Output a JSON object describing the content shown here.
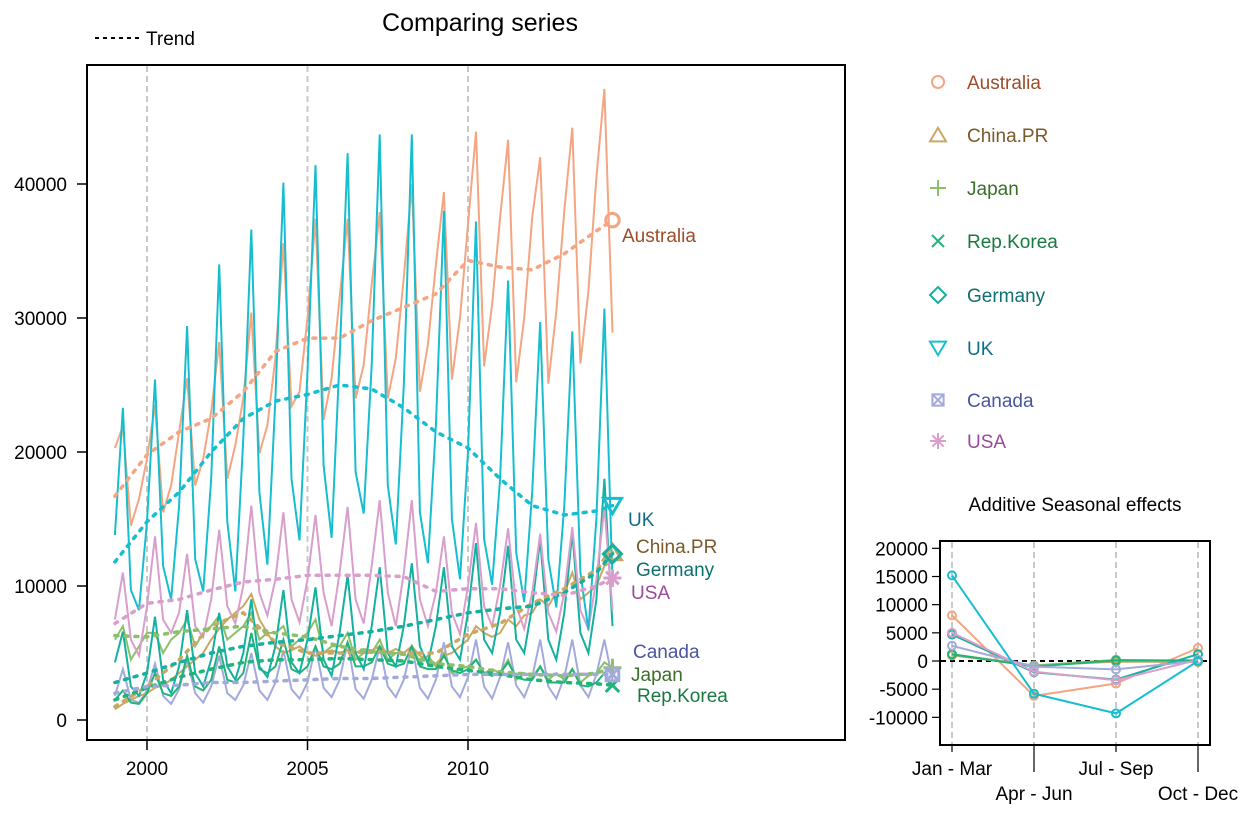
{
  "chart_data": [
    {
      "type": "line",
      "title": "Comparing series",
      "trend_legend_label": "Trend",
      "x_start": 1999,
      "frequency": 4,
      "xticks": [
        2000,
        2005,
        2010
      ],
      "yticks": [
        0,
        10000,
        20000,
        30000,
        40000
      ],
      "ylim": [
        -1500,
        48500
      ],
      "xlim": [
        1997.1,
        2020.7
      ],
      "grid": "vertical dashed at x ticks",
      "legend": "right",
      "trend_x": [
        1999,
        2000,
        2001,
        2002,
        2003,
        2004,
        2005,
        2006,
        2007,
        2008,
        2009,
        2010,
        2011,
        2012,
        2013,
        2014,
        2014.5
      ],
      "series": [
        {
          "name": "Australia",
          "color": "#f4a582",
          "label_color": "#9c4d2a",
          "marker": "circle",
          "values": [
            20300,
            21900,
            14500,
            16500,
            19500,
            23500,
            15500,
            17500,
            21500,
            25500,
            17500,
            19500,
            23000,
            28200,
            18000,
            20500,
            24000,
            30400,
            19900,
            22000,
            27000,
            35600,
            23400,
            24500,
            30000,
            37400,
            22400,
            25500,
            31500,
            37400,
            24000,
            26500,
            32500,
            37900,
            24000,
            27000,
            33000,
            40000,
            24500,
            28000,
            34000,
            39400,
            25400,
            30000,
            37000,
            43900,
            26400,
            31000,
            37500,
            43300,
            25200,
            30000,
            37500,
            42000,
            25100,
            30500,
            38000,
            44200,
            26600,
            32000,
            40500,
            47100,
            28900
          ],
          "trend": [
            16700,
            19800,
            21500,
            22500,
            24500,
            27500,
            28500,
            28500,
            29800,
            30800,
            31800,
            34300,
            33800,
            33600,
            34800,
            36500,
            37300
          ]
        },
        {
          "name": "China.PR",
          "color": "#c9a865",
          "label_color": "#7a5a2a",
          "marker": "triangle",
          "values": [
            800,
            1200,
            1500,
            1800,
            2000,
            2400,
            2600,
            3000,
            3500,
            4000,
            4500,
            5000,
            6000,
            6800,
            7500,
            8000,
            8500,
            9400,
            7500,
            6500,
            5500,
            5000,
            5200,
            5500,
            5000,
            4800,
            5000,
            5200,
            5000,
            5200,
            5000,
            5300,
            5200,
            5500,
            5000,
            5300,
            5000,
            5500,
            4800,
            4500,
            4200,
            4800,
            5000,
            5500,
            6000,
            7000,
            6500,
            6200,
            6500,
            7500,
            7000,
            7800,
            8000,
            9000,
            8500,
            9500,
            9500,
            11000,
            9000,
            9500,
            10000,
            11500,
            11800
          ],
          "trend": [
            1000,
            2500,
            4500,
            7000,
            8000,
            5800,
            5000,
            5000,
            5100,
            5000,
            5000,
            6400,
            7200,
            8700,
            9800,
            11200,
            12500
          ]
        },
        {
          "name": "Japan",
          "color": "#8cbf6a",
          "label_color": "#3a6e2a",
          "marker": "plus",
          "values": [
            6000,
            7000,
            4500,
            5500,
            6500,
            6500,
            5000,
            6000,
            6500,
            7500,
            5500,
            6500,
            7000,
            7800,
            6000,
            6500,
            7000,
            8000,
            6000,
            6500,
            6500,
            7000,
            5500,
            6000,
            6500,
            7500,
            5000,
            5500,
            5500,
            6500,
            4500,
            5000,
            5000,
            6000,
            4500,
            5000,
            5000,
            5500,
            4300,
            4800,
            4000,
            5000,
            3500,
            3800,
            4000,
            4500,
            3500,
            3800,
            3500,
            4500,
            3000,
            3500,
            3200,
            4000,
            3000,
            3500,
            3000,
            3800,
            2800,
            3300,
            3500,
            4300,
            3900
          ],
          "trend": [
            6300,
            6200,
            6600,
            6800,
            7000,
            6500,
            6200,
            5500,
            5100,
            4900,
            4200,
            4000,
            3600,
            3400,
            3300,
            3500,
            3900
          ]
        },
        {
          "name": "Rep.Korea",
          "color": "#20b37a",
          "label_color": "#187a40",
          "marker": "cross",
          "values": [
            1500,
            2200,
            1300,
            1200,
            2000,
            3500,
            2000,
            1800,
            2500,
            4800,
            2500,
            2200,
            3000,
            5500,
            3000,
            2800,
            3500,
            6500,
            3800,
            3500,
            4000,
            6000,
            3800,
            3500,
            4000,
            5500,
            4000,
            3800,
            4200,
            5800,
            4000,
            4000,
            4300,
            5500,
            4200,
            4000,
            4200,
            5500,
            4000,
            3800,
            3800,
            4800,
            3700,
            3500,
            3800,
            4500,
            3500,
            3300,
            3500,
            4300,
            3200,
            3000,
            3000,
            4000,
            2800,
            2800,
            2800,
            3800,
            2600,
            2500,
            2800,
            3500,
            2500
          ],
          "trend": [
            1500,
            2400,
            3200,
            3800,
            4300,
            4500,
            4500,
            4600,
            4500,
            4400,
            4000,
            3700,
            3400,
            3000,
            2800,
            2700,
            2600
          ]
        },
        {
          "name": "Germany",
          "color": "#14b0a0",
          "label_color": "#0e7070",
          "marker": "diamond",
          "values": [
            4300,
            6600,
            2500,
            1800,
            3500,
            7700,
            3000,
            2000,
            4000,
            8200,
            3500,
            2500,
            4500,
            8000,
            4000,
            3000,
            5000,
            9000,
            4000,
            3200,
            5500,
            9700,
            4300,
            3500,
            6000,
            9900,
            4500,
            3300,
            6500,
            10800,
            5000,
            3800,
            7000,
            11400,
            5000,
            4000,
            7000,
            11700,
            5500,
            4200,
            7000,
            11400,
            5500,
            4500,
            8000,
            13200,
            6000,
            5000,
            8000,
            13000,
            6000,
            5000,
            8500,
            13500,
            6000,
            4500,
            8000,
            14000,
            6500,
            5000,
            9000,
            18000,
            7000
          ],
          "trend": [
            2800,
            3500,
            4300,
            5000,
            5500,
            5800,
            6000,
            6300,
            6600,
            7000,
            7500,
            8000,
            8300,
            8500,
            9500,
            11000,
            12400
          ]
        },
        {
          "name": "UK",
          "color": "#17becf",
          "label_color": "#0e6e8a",
          "marker": "triangle-down",
          "values": [
            13800,
            23300,
            9700,
            8200,
            14800,
            25400,
            11500,
            9000,
            16000,
            29400,
            12000,
            9600,
            18000,
            34000,
            14800,
            9600,
            21000,
            36600,
            17000,
            11600,
            24000,
            40100,
            18000,
            13400,
            26000,
            41400,
            19000,
            13600,
            27000,
            42300,
            18500,
            15400,
            26500,
            43700,
            17500,
            13100,
            25000,
            43700,
            15500,
            11700,
            22000,
            38000,
            15000,
            10500,
            20000,
            37200,
            13500,
            10100,
            18000,
            32800,
            12500,
            8800,
            17000,
            29700,
            12000,
            8400,
            16000,
            29000,
            11000,
            6700,
            15000,
            30700,
            10000
          ],
          "trend": [
            11800,
            14800,
            17000,
            20000,
            22500,
            23800,
            24300,
            25000,
            24700,
            23300,
            21500,
            20300,
            18000,
            16000,
            15300,
            15600,
            16000
          ]
        },
        {
          "name": "Canada",
          "color": "#a3aadb",
          "label_color": "#4a55a0",
          "marker": "square-x",
          "values": [
            1800,
            3800,
            1500,
            1300,
            2200,
            4200,
            1800,
            1200,
            2300,
            4500,
            2000,
            1300,
            2500,
            4800,
            2000,
            1500,
            2600,
            5000,
            2200,
            1500,
            2800,
            5200,
            2300,
            1600,
            2800,
            5500,
            2400,
            1700,
            3000,
            5800,
            2300,
            1600,
            3000,
            5500,
            2500,
            1700,
            3000,
            5600,
            2400,
            1600,
            3000,
            5800,
            2500,
            1700,
            3200,
            6000,
            2500,
            1600,
            3200,
            5800,
            2600,
            1700,
            3200,
            6000,
            2500,
            1600,
            3200,
            6000,
            2600,
            1700,
            3400,
            6000,
            3000
          ],
          "trend": [
            2000,
            2500,
            2600,
            2800,
            2800,
            2900,
            3000,
            3100,
            3100,
            3200,
            3300,
            3400,
            3400,
            3400,
            3400,
            3400,
            3400
          ]
        },
        {
          "name": "USA",
          "color": "#d89ecc",
          "label_color": "#9a4a9a",
          "marker": "asterisk",
          "values": [
            7500,
            11000,
            6000,
            4800,
            8500,
            13700,
            7500,
            6500,
            8000,
            12400,
            7000,
            6200,
            9000,
            14200,
            8500,
            7200,
            10000,
            16000,
            9500,
            7800,
            10500,
            15500,
            9000,
            7300,
            10500,
            15300,
            9500,
            7000,
            11000,
            15900,
            9000,
            7200,
            11500,
            16400,
            9500,
            7000,
            11000,
            16400,
            9000,
            7000,
            9500,
            13700,
            8000,
            6400,
            10000,
            14700,
            8500,
            7000,
            10000,
            14300,
            8500,
            6800,
            9500,
            13900,
            8000,
            6600,
            9500,
            14400,
            8200,
            6800,
            10500,
            15900,
            8200
          ],
          "trend": [
            7200,
            8700,
            9000,
            9700,
            10300,
            10500,
            10800,
            10800,
            10800,
            10700,
            9600,
            9800,
            9800,
            9500,
            9300,
            10000,
            10600
          ]
        }
      ]
    },
    {
      "type": "line",
      "title": "Additive Seasonal effects",
      "categories": [
        "Jan - Mar",
        "Apr - Jun",
        "Jul - Sep",
        "Oct - Dec"
      ],
      "yticks": [
        -10000,
        -5000,
        0,
        5000,
        10000,
        15000,
        20000
      ],
      "ylim": [
        -14000,
        21500
      ],
      "reference_line": 0,
      "series": [
        {
          "name": "Australia",
          "color": "#f4a582",
          "values": [
            8100,
            -6200,
            -4000,
            2300
          ]
        },
        {
          "name": "China.PR",
          "color": "#c9a865",
          "values": [
            1000,
            -800,
            -100,
            -200
          ]
        },
        {
          "name": "Japan",
          "color": "#8cbf6a",
          "values": [
            1200,
            -800,
            200,
            0
          ]
        },
        {
          "name": "Rep.Korea",
          "color": "#20b37a",
          "values": [
            1200,
            -1000,
            100,
            100
          ]
        },
        {
          "name": "Germany",
          "color": "#14b0a0",
          "values": [
            4700,
            -2000,
            -3300,
            1200
          ]
        },
        {
          "name": "Canada",
          "color": "#a3aadb",
          "values": [
            2700,
            -1000,
            -1500,
            0
          ]
        },
        {
          "name": "USA",
          "color": "#d89ecc",
          "values": [
            5000,
            -1900,
            -3400,
            200
          ]
        },
        {
          "name": "UK",
          "color": "#17becf",
          "values": [
            15200,
            -5800,
            -9300,
            0
          ]
        }
      ]
    }
  ]
}
